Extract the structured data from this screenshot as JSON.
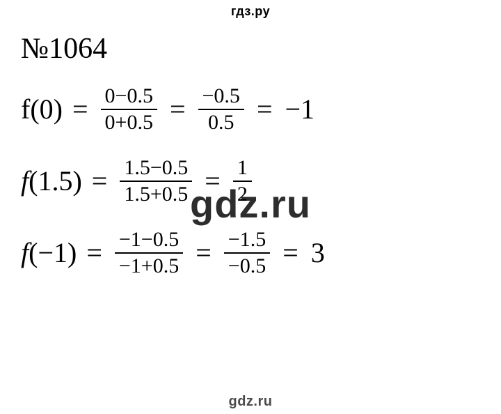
{
  "branding": {
    "header": "гдз.ру",
    "footer": "gdz.ru",
    "watermark": "gdz.ru"
  },
  "problem": {
    "number": "№1064"
  },
  "equations": [
    {
      "fn": "f",
      "arg": "(0)",
      "steps": [
        {
          "num": "0−0.5",
          "den": "0+0.5"
        },
        {
          "num": "−0.5",
          "den": "0.5"
        }
      ],
      "result": "−1"
    },
    {
      "fn": "f",
      "arg": "(1.5)",
      "steps": [
        {
          "num": "1.5−0.5",
          "den": "1.5+0.5"
        },
        {
          "num": "1",
          "den": "2"
        }
      ],
      "result": ""
    },
    {
      "fn": "f",
      "arg": "(−1)",
      "steps": [
        {
          "num": "−1−0.5",
          "den": "−1+0.5"
        },
        {
          "num": "−1.5",
          "den": "−0.5"
        }
      ],
      "result": "3"
    }
  ],
  "style": {
    "text_color": "#000000",
    "background": "#ffffff",
    "footer_color": "#4a4a4a",
    "body_fontsize": 40,
    "frac_fontsize": 30,
    "header_fontsize": 18,
    "footer_fontsize": 20,
    "watermark_fontsize": 56
  }
}
